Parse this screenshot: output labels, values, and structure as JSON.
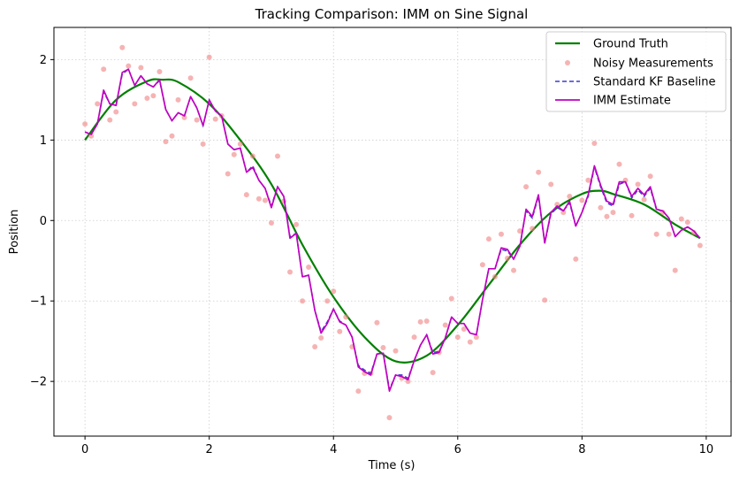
{
  "chart_data": {
    "type": "line",
    "title": "Tracking Comparison: IMM on Sine Signal",
    "xlabel": "Time (s)",
    "ylabel": "Position",
    "xlim": [
      -0.5,
      10.4
    ],
    "ylim": [
      -2.68,
      2.4
    ],
    "x_ticks": [
      0,
      2,
      4,
      6,
      8,
      10
    ],
    "y_ticks": [
      2,
      1,
      0,
      -1,
      -2
    ],
    "x_tick_labels": [
      "0",
      "2",
      "4",
      "6",
      "8",
      "10"
    ],
    "y_tick_labels": [
      "2",
      "1",
      "0",
      "−1",
      "−2"
    ],
    "grid": true,
    "legend_position": "top-right",
    "ground_truth": {
      "name": "Ground Truth",
      "color": "#008000",
      "formula": "sin(0.5*t + 0.5*pi) ... approximated",
      "x": [
        0,
        0.5,
        1.0,
        1.25,
        1.5,
        2.0,
        2.5,
        3.0,
        3.5,
        4.0,
        4.5,
        5.0,
        5.5,
        6.0,
        6.5,
        7.0,
        7.5,
        8.0,
        8.3,
        8.5,
        9.0,
        9.5,
        9.9
      ],
      "y": [
        1.0,
        1.5,
        1.73,
        1.75,
        1.72,
        1.45,
        1.0,
        0.45,
        -0.3,
        -0.95,
        -1.45,
        -1.75,
        -1.68,
        -1.3,
        -0.8,
        -0.3,
        0.1,
        0.33,
        0.37,
        0.33,
        0.2,
        -0.05,
        -0.22
      ]
    },
    "measurements": {
      "name": "Noisy Measurements",
      "color": "#f08080",
      "x": [
        0,
        0.1,
        0.2,
        0.3,
        0.4,
        0.5,
        0.6,
        0.7,
        0.8,
        0.9,
        1.0,
        1.1,
        1.2,
        1.3,
        1.4,
        1.5,
        1.6,
        1.7,
        1.8,
        1.9,
        2.0,
        2.1,
        2.2,
        2.3,
        2.4,
        2.5,
        2.6,
        2.7,
        2.8,
        2.9,
        3.0,
        3.1,
        3.2,
        3.3,
        3.4,
        3.5,
        3.6,
        3.7,
        3.8,
        3.9,
        4.0,
        4.1,
        4.2,
        4.3,
        4.4,
        4.5,
        4.6,
        4.7,
        4.8,
        4.9,
        5.0,
        5.1,
        5.2,
        5.3,
        5.4,
        5.5,
        5.6,
        5.7,
        5.8,
        5.9,
        6.0,
        6.1,
        6.2,
        6.3,
        6.4,
        6.5,
        6.6,
        6.7,
        6.8,
        6.9,
        7.0,
        7.1,
        7.2,
        7.3,
        7.4,
        7.5,
        7.6,
        7.7,
        7.8,
        7.9,
        8.0,
        8.1,
        8.2,
        8.3,
        8.4,
        8.5,
        8.6,
        8.7,
        8.8,
        8.9,
        9.0,
        9.1,
        9.2,
        9.3,
        9.4,
        9.5,
        9.6,
        9.7,
        9.8,
        9.9
      ],
      "y": [
        1.2,
        1.05,
        1.45,
        1.88,
        1.25,
        1.35,
        2.15,
        1.92,
        1.45,
        1.9,
        1.52,
        1.55,
        1.85,
        0.98,
        1.05,
        1.5,
        1.28,
        1.77,
        1.25,
        0.95,
        2.03,
        1.26,
        1.3,
        0.58,
        0.82,
        0.95,
        0.32,
        0.8,
        0.27,
        0.25,
        -0.03,
        0.8,
        0.24,
        -0.64,
        -0.05,
        -1.0,
        -0.58,
        -1.57,
        -1.46,
        -1.0,
        -0.88,
        -1.38,
        -1.2,
        -1.57,
        -2.12,
        -1.9,
        -1.9,
        -1.27,
        -1.58,
        -2.45,
        -1.62,
        -1.96,
        -2.0,
        -1.45,
        -1.26,
        -1.25,
        -1.89,
        -1.64,
        -1.3,
        -0.97,
        -1.45,
        -1.35,
        -1.51,
        -1.45,
        -0.55,
        -0.23,
        -0.7,
        -0.17,
        -0.47,
        -0.62,
        -0.13,
        0.42,
        -0.1,
        0.6,
        -0.99,
        0.45,
        0.2,
        0.1,
        0.3,
        -0.48,
        0.25,
        0.5,
        0.96,
        0.16,
        0.05,
        0.1,
        0.7,
        0.5,
        0.06,
        0.45,
        0.26,
        0.55,
        -0.17,
        0.1,
        -0.17,
        -0.62,
        0.02,
        -0.02,
        -0.15,
        -0.31
      ]
    },
    "kf": {
      "name": "Standard KF Baseline",
      "color": "#3c3ccc",
      "x": [
        0,
        0.1,
        0.2,
        0.3,
        0.4,
        0.5,
        0.6,
        0.7,
        0.8,
        0.9,
        1.0,
        1.1,
        1.2,
        1.3,
        1.4,
        1.5,
        1.6,
        1.7,
        1.8,
        1.9,
        2.0,
        2.1,
        2.2,
        2.3,
        2.4,
        2.5,
        2.6,
        2.7,
        2.8,
        2.9,
        3.0,
        3.1,
        3.2,
        3.3,
        3.4,
        3.5,
        3.6,
        3.7,
        3.8,
        3.9,
        4.0,
        4.1,
        4.2,
        4.3,
        4.4,
        4.5,
        4.6,
        4.7,
        4.8,
        4.9,
        5.0,
        5.1,
        5.2,
        5.3,
        5.4,
        5.5,
        5.6,
        5.7,
        5.8,
        5.9,
        6.0,
        6.1,
        6.2,
        6.3,
        6.4,
        6.5,
        6.6,
        6.7,
        6.8,
        6.9,
        7.0,
        7.1,
        7.2,
        7.3,
        7.4,
        7.5,
        7.6,
        7.7,
        7.8,
        7.9,
        8.0,
        8.1,
        8.2,
        8.3,
        8.4,
        8.5,
        8.6,
        8.7,
        8.8,
        8.9,
        9.0,
        9.1,
        9.2,
        9.3,
        9.4,
        9.5,
        9.6,
        9.7,
        9.8,
        9.9
      ],
      "y": [
        1.1,
        1.07,
        1.2,
        1.6,
        1.45,
        1.43,
        1.82,
        1.88,
        1.68,
        1.8,
        1.7,
        1.66,
        1.74,
        1.38,
        1.24,
        1.34,
        1.3,
        1.54,
        1.4,
        1.18,
        1.5,
        1.36,
        1.3,
        0.95,
        0.88,
        0.9,
        0.6,
        0.68,
        0.5,
        0.4,
        0.18,
        0.42,
        0.3,
        -0.2,
        -0.16,
        -0.7,
        -0.68,
        -1.12,
        -1.38,
        -1.26,
        -1.1,
        -1.25,
        -1.3,
        -1.45,
        -1.8,
        -1.86,
        -1.9,
        -1.66,
        -1.65,
        -2.1,
        -1.92,
        -1.92,
        -1.96,
        -1.74,
        -1.55,
        -1.42,
        -1.64,
        -1.63,
        -1.46,
        -1.2,
        -1.28,
        -1.28,
        -1.4,
        -1.42,
        -0.98,
        -0.6,
        -0.6,
        -0.36,
        -0.38,
        -0.48,
        -0.32,
        0.12,
        0.03,
        0.3,
        -0.28,
        0.08,
        0.16,
        0.12,
        0.22,
        -0.07,
        0.1,
        0.3,
        0.66,
        0.42,
        0.22,
        0.18,
        0.45,
        0.48,
        0.28,
        0.38,
        0.3,
        0.4,
        0.13,
        0.12,
        0.03,
        -0.2,
        -0.12,
        -0.08,
        -0.13,
        -0.22
      ]
    },
    "imm": {
      "name": "IMM Estimate",
      "color": "#c000c0",
      "x": [
        0,
        0.1,
        0.2,
        0.3,
        0.4,
        0.5,
        0.6,
        0.7,
        0.8,
        0.9,
        1.0,
        1.1,
        1.2,
        1.3,
        1.4,
        1.5,
        1.6,
        1.7,
        1.8,
        1.9,
        2.0,
        2.1,
        2.2,
        2.3,
        2.4,
        2.5,
        2.6,
        2.7,
        2.8,
        2.9,
        3.0,
        3.1,
        3.2,
        3.3,
        3.4,
        3.5,
        3.6,
        3.7,
        3.8,
        3.9,
        4.0,
        4.1,
        4.2,
        4.3,
        4.4,
        4.5,
        4.6,
        4.7,
        4.8,
        4.9,
        5.0,
        5.1,
        5.2,
        5.3,
        5.4,
        5.5,
        5.6,
        5.7,
        5.8,
        5.9,
        6.0,
        6.1,
        6.2,
        6.3,
        6.4,
        6.5,
        6.6,
        6.7,
        6.8,
        6.9,
        7.0,
        7.1,
        7.2,
        7.3,
        7.4,
        7.5,
        7.6,
        7.7,
        7.8,
        7.9,
        8.0,
        8.1,
        8.2,
        8.3,
        8.4,
        8.5,
        8.6,
        8.7,
        8.8,
        8.9,
        9.0,
        9.1,
        9.2,
        9.3,
        9.4,
        9.5,
        9.6,
        9.7,
        9.8,
        9.9
      ],
      "y": [
        1.1,
        1.07,
        1.2,
        1.62,
        1.45,
        1.43,
        1.84,
        1.88,
        1.68,
        1.8,
        1.7,
        1.66,
        1.75,
        1.38,
        1.24,
        1.34,
        1.3,
        1.54,
        1.4,
        1.18,
        1.5,
        1.36,
        1.3,
        0.95,
        0.88,
        0.9,
        0.6,
        0.66,
        0.5,
        0.4,
        0.16,
        0.42,
        0.3,
        -0.22,
        -0.16,
        -0.7,
        -0.68,
        -1.12,
        -1.4,
        -1.28,
        -1.1,
        -1.26,
        -1.3,
        -1.45,
        -1.82,
        -1.88,
        -1.92,
        -1.66,
        -1.65,
        -2.12,
        -1.92,
        -1.94,
        -1.98,
        -1.74,
        -1.55,
        -1.42,
        -1.66,
        -1.64,
        -1.46,
        -1.2,
        -1.28,
        -1.28,
        -1.4,
        -1.42,
        -0.98,
        -0.6,
        -0.6,
        -0.34,
        -0.36,
        -0.48,
        -0.32,
        0.14,
        0.05,
        0.32,
        -0.28,
        0.1,
        0.18,
        0.12,
        0.24,
        -0.07,
        0.1,
        0.32,
        0.68,
        0.44,
        0.24,
        0.2,
        0.48,
        0.48,
        0.3,
        0.4,
        0.32,
        0.42,
        0.14,
        0.12,
        0.03,
        -0.2,
        -0.12,
        -0.08,
        -0.13,
        -0.22
      ]
    }
  }
}
